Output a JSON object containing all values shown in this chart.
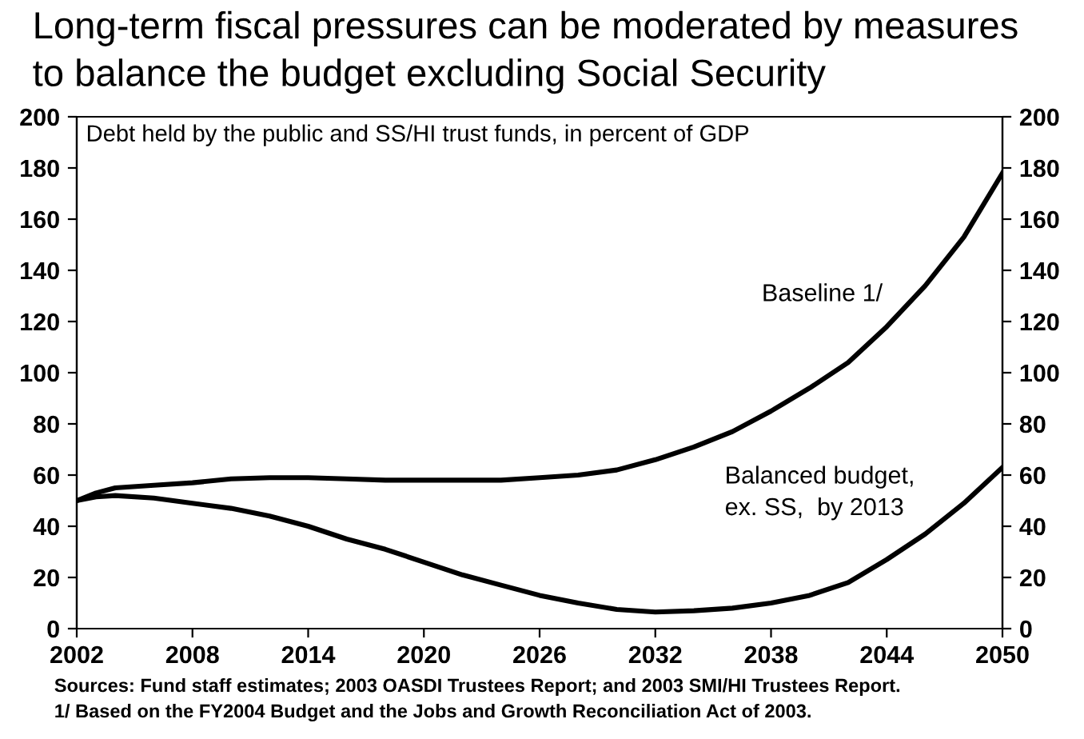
{
  "chart_data": {
    "type": "line",
    "title": "Long-term fiscal pressures can be moderated by measures\nto balance the budget excluding Social Security",
    "x": [
      2002,
      2003,
      2004,
      2006,
      2008,
      2010,
      2012,
      2014,
      2016,
      2018,
      2020,
      2022,
      2024,
      2026,
      2028,
      2030,
      2032,
      2034,
      2036,
      2038,
      2040,
      2042,
      2044,
      2046,
      2048,
      2050
    ],
    "series": [
      {
        "name": "Baseline 1/",
        "color": "#000000",
        "values": [
          50,
          53,
          55,
          56,
          57,
          58.5,
          59,
          59,
          58.5,
          58,
          58,
          58,
          58,
          59,
          60,
          62,
          66,
          71,
          77,
          85,
          94,
          104,
          118,
          134,
          153,
          178
        ]
      },
      {
        "name": "Balanced budget,\nex. SS,  by 2013",
        "color": "#000000",
        "values": [
          50,
          51.5,
          52,
          51,
          49,
          47,
          44,
          40,
          35,
          31,
          26,
          21,
          17,
          13,
          10,
          7.5,
          6.5,
          7,
          8,
          10,
          13,
          18,
          27,
          37,
          49,
          63
        ]
      }
    ],
    "xlim": [
      2002,
      2050
    ],
    "xticks": [
      2002,
      2008,
      2014,
      2020,
      2026,
      2032,
      2038,
      2044,
      2050
    ],
    "ylim": [
      0,
      200
    ],
    "yticks": [
      0,
      20,
      40,
      60,
      80,
      100,
      120,
      140,
      160,
      180,
      200
    ],
    "y2lim": [
      0,
      200
    ],
    "y2ticks": [
      0,
      20,
      40,
      60,
      80,
      100,
      120,
      140,
      160,
      180,
      200
    ],
    "annotations": [
      "Debt held by the public and SS/HI trust funds, in percent of GDP",
      "Sources: Fund staff estimates; 2003 OASDI Trustees Report; and 2003 SMI/HI Trustees Report.",
      "1/ Based on the FY2004 Budget and the Jobs and Growth Reconciliation Act of 2003."
    ],
    "grid": false,
    "legend": false
  }
}
